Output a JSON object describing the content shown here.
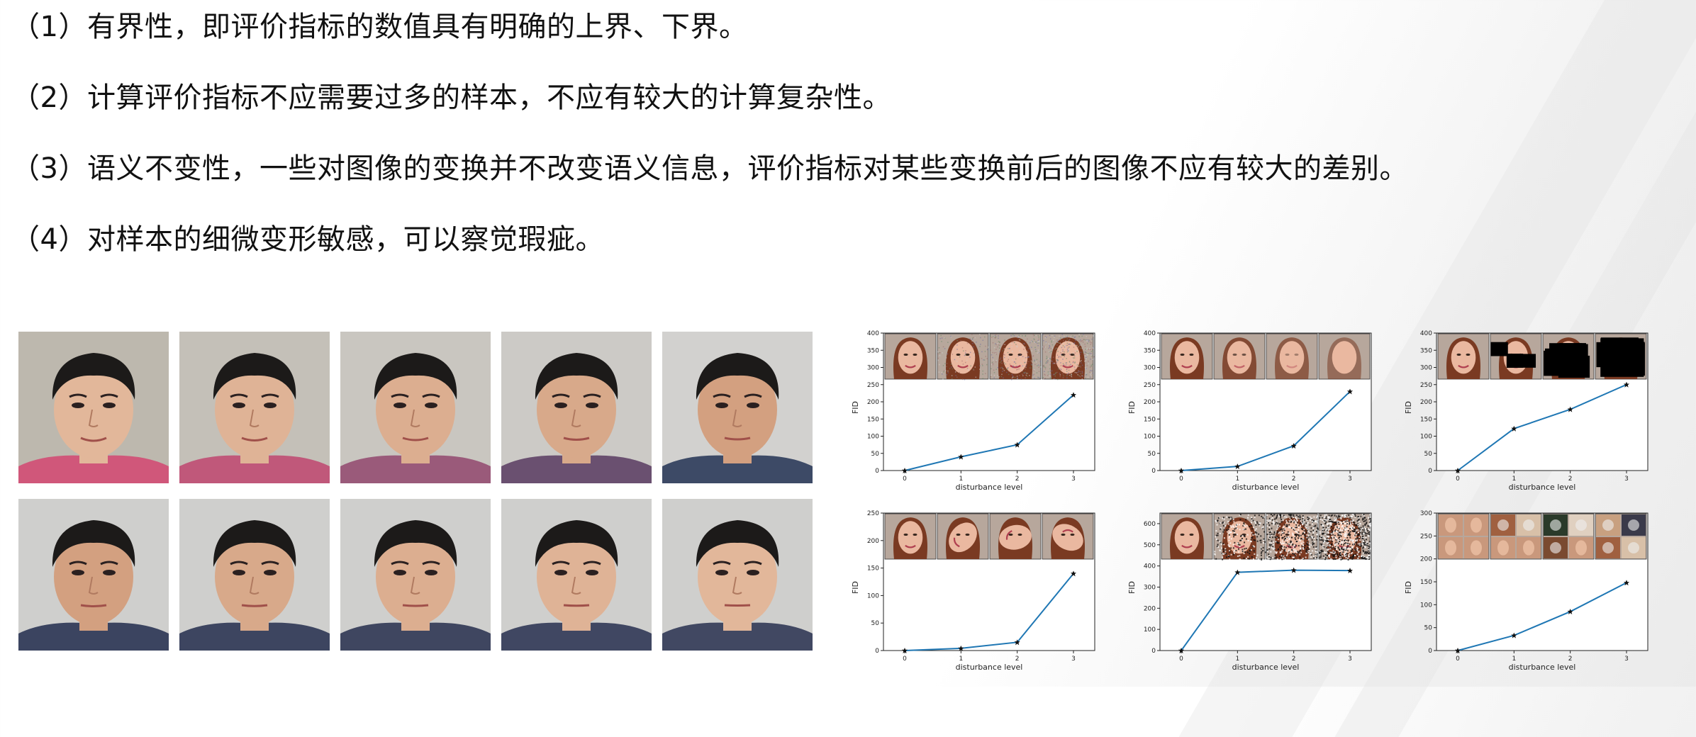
{
  "criteria": [
    "（1）有界性，即评价指标的数值具有明确的上界、下界。",
    "（2）计算评价指标不应需要过多的样本，不应有较大的计算复杂性。",
    "（3）语义不变性，一些对图像的变换并不改变语义信息，评价指标对某些变换前后的图像不应有较大的差别。",
    "（4）对样本的细微变形敏感，可以察觉瑕疵。"
  ],
  "face_grid": {
    "rows": 2,
    "cols": 5
  },
  "chart_data": [
    {
      "type": "line",
      "perturbation": "gaussian-noise",
      "xlabel": "disturbance level",
      "ylabel": "FID",
      "x": [
        0,
        1,
        2,
        3
      ],
      "y": [
        0,
        40,
        75,
        220
      ],
      "ylim": [
        0,
        400
      ],
      "yticks": [
        0,
        50,
        100,
        150,
        200,
        250,
        300,
        350,
        400
      ],
      "grid": false,
      "line_color": "#1f77b4"
    },
    {
      "type": "line",
      "perturbation": "gaussian-blur",
      "xlabel": "disturbance level",
      "ylabel": "FID",
      "x": [
        0,
        1,
        2,
        3
      ],
      "y": [
        0,
        12,
        72,
        230
      ],
      "ylim": [
        0,
        400
      ],
      "yticks": [
        0,
        50,
        100,
        150,
        200,
        250,
        300,
        350,
        400
      ],
      "grid": false,
      "line_color": "#1f77b4"
    },
    {
      "type": "line",
      "perturbation": "black-rectangles",
      "xlabel": "disturbance level",
      "ylabel": "FID",
      "x": [
        0,
        1,
        2,
        3
      ],
      "y": [
        0,
        122,
        178,
        250
      ],
      "ylim": [
        0,
        400
      ],
      "yticks": [
        0,
        50,
        100,
        150,
        200,
        250,
        300,
        350,
        400
      ],
      "grid": false,
      "line_color": "#1f77b4"
    },
    {
      "type": "line",
      "perturbation": "swirl",
      "xlabel": "disturbance level",
      "ylabel": "FID",
      "x": [
        0,
        1,
        2,
        3
      ],
      "y": [
        0,
        4,
        15,
        140
      ],
      "ylim": [
        0,
        250
      ],
      "yticks": [
        0,
        50,
        100,
        150,
        200,
        250
      ],
      "grid": false,
      "line_color": "#1f77b4"
    },
    {
      "type": "line",
      "perturbation": "salt-and-pepper",
      "xlabel": "disturbance level",
      "ylabel": "FID",
      "x": [
        0,
        1,
        2,
        3
      ],
      "y": [
        0,
        370,
        380,
        378
      ],
      "ylim": [
        0,
        650
      ],
      "yticks": [
        0,
        100,
        200,
        300,
        400,
        500,
        600
      ],
      "grid": false,
      "line_color": "#1f77b4"
    },
    {
      "type": "line",
      "perturbation": "imagenet-contamination",
      "xlabel": "disturbance level",
      "ylabel": "FID",
      "x": [
        0,
        1,
        2,
        3
      ],
      "y": [
        0,
        33,
        85,
        148
      ],
      "ylim": [
        0,
        300
      ],
      "yticks": [
        0,
        50,
        100,
        150,
        200,
        250,
        300
      ],
      "grid": false,
      "line_color": "#1f77b4"
    }
  ],
  "colors": {
    "series": "#1f77b4",
    "axes": "#222222"
  },
  "icons": [
    "face-thumbnail-icon",
    "perturbed-face-thumbnail-icon"
  ]
}
